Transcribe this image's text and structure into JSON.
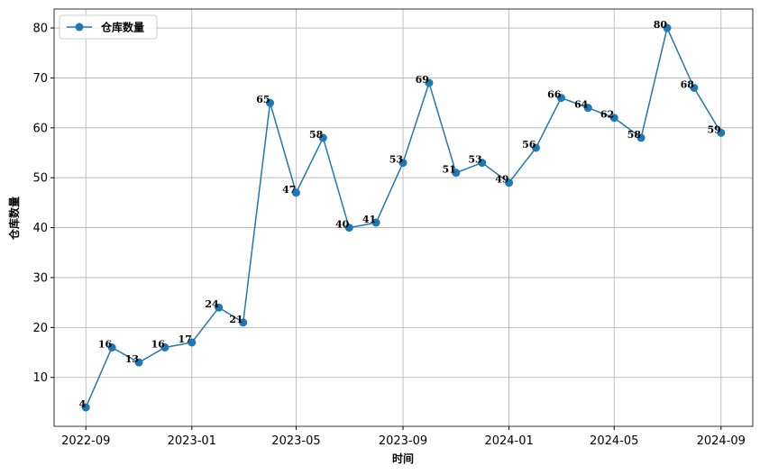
{
  "chart_data": {
    "type": "line",
    "x_label": "时间",
    "y_label": "仓库数量",
    "x": [
      "2022-09",
      "2022-10",
      "2022-11",
      "2022-12",
      "2023-01",
      "2023-02",
      "2023-03",
      "2023-04",
      "2023-05",
      "2023-06",
      "2023-07",
      "2023-08",
      "2023-09",
      "2023-10",
      "2023-11",
      "2023-12",
      "2024-01",
      "2024-02",
      "2024-03",
      "2024-04",
      "2024-05",
      "2024-06",
      "2024-07",
      "2024-08",
      "2024-09"
    ],
    "series": [
      {
        "name": "仓库数量",
        "color": "#1f77b4",
        "values": [
          4,
          16,
          13,
          16,
          17,
          24,
          21,
          65,
          47,
          58,
          40,
          41,
          53,
          69,
          51,
          53,
          49,
          56,
          66,
          64,
          62,
          58,
          80,
          68,
          59
        ]
      }
    ],
    "xticks": [
      "2022-09",
      "2023-01",
      "2023-05",
      "2023-09",
      "2024-01",
      "2024-05",
      "2024-09"
    ],
    "ylim": [
      0.2,
      83.8
    ],
    "yticks": [
      10,
      20,
      30,
      40,
      50,
      60,
      70,
      80
    ],
    "grid": true,
    "legend": "upper left"
  }
}
